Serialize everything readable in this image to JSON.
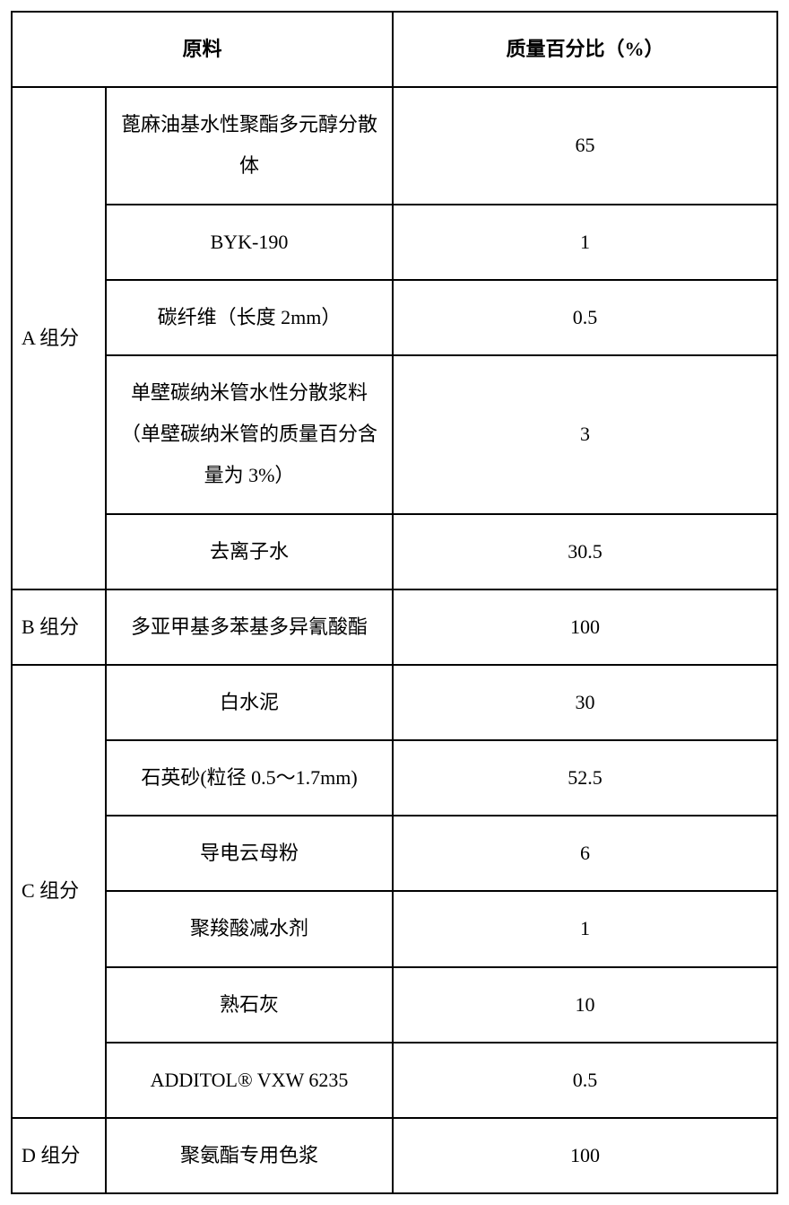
{
  "table": {
    "headers": {
      "material": "原料",
      "percent": "质量百分比（%）"
    },
    "groups": [
      {
        "label": "A 组分",
        "rows": [
          {
            "material": "蓖麻油基水性聚酯多元醇分散体",
            "percent": "65"
          },
          {
            "material": "BYK-190",
            "percent": "1"
          },
          {
            "material": "碳纤维（长度 2mm）",
            "percent": "0.5"
          },
          {
            "material": "单壁碳纳米管水性分散浆料（单壁碳纳米管的质量百分含量为 3%）",
            "percent": "3"
          },
          {
            "material": "去离子水",
            "percent": "30.5"
          }
        ]
      },
      {
        "label": "B 组分",
        "rows": [
          {
            "material": "多亚甲基多苯基多异氰酸酯",
            "percent": "100"
          }
        ]
      },
      {
        "label": "C 组分",
        "rows": [
          {
            "material": "白水泥",
            "percent": "30"
          },
          {
            "material": "石英砂(粒径 0.5～1.7mm)",
            "percent": "52.5"
          },
          {
            "material": "导电云母粉",
            "percent": "6"
          },
          {
            "material": "聚羧酸减水剂",
            "percent": "1"
          },
          {
            "material": "熟石灰",
            "percent": "10"
          },
          {
            "material": "ADDITOL® VXW 6235",
            "percent": "0.5"
          }
        ]
      },
      {
        "label": "D 组分",
        "rows": [
          {
            "material": "聚氨酯专用色浆",
            "percent": "100"
          }
        ]
      }
    ]
  },
  "style": {
    "background_color": "#ffffff",
    "border_color": "#000000",
    "text_color": "#000000",
    "header_fontsize": 22,
    "cell_fontsize": 22,
    "border_width": 2,
    "line_height": 2.1
  }
}
